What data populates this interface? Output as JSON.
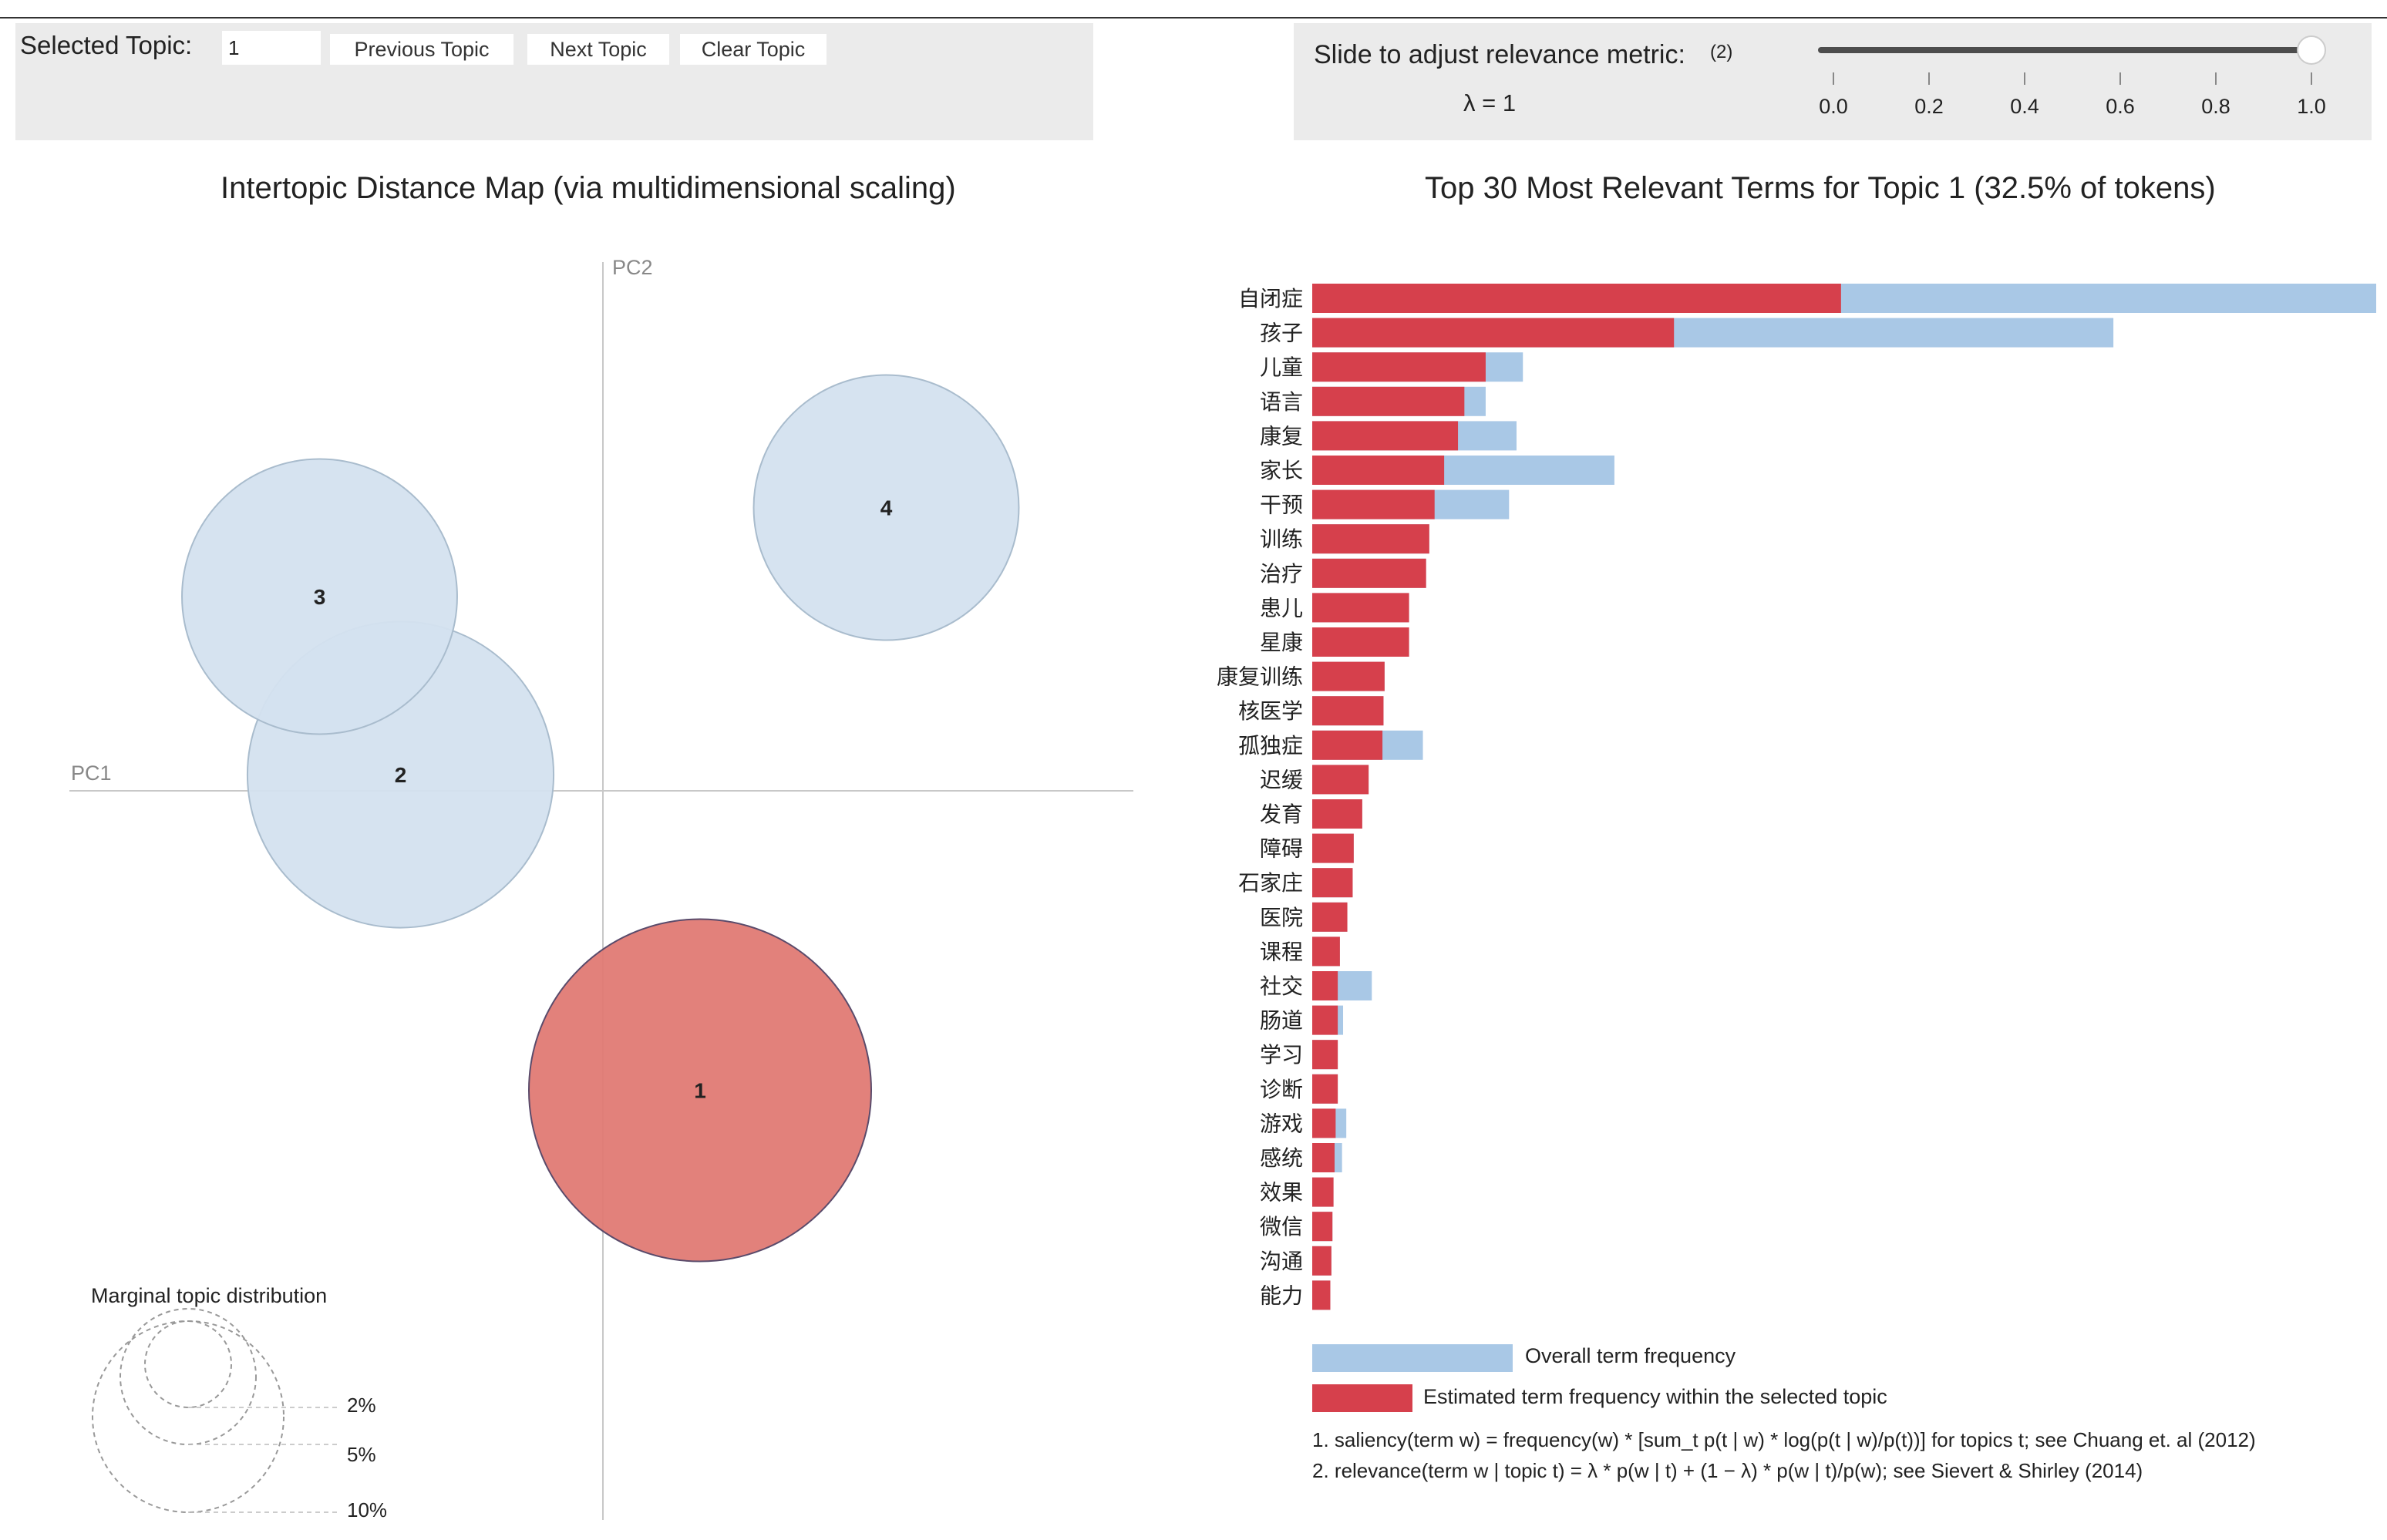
{
  "controls": {
    "selected_topic_label": "Selected Topic:",
    "selected_topic_value": "1",
    "previous_label": "Previous Topic",
    "next_label": "Next Topic",
    "clear_label": "Clear Topic"
  },
  "relevance": {
    "label": "Slide to adjust relevance metric:",
    "note": "(2)",
    "lambda_label": "λ = 1",
    "value": 1.0,
    "ticks": [
      "0.0",
      "0.2",
      "0.4",
      "0.6",
      "0.8",
      "1.0"
    ]
  },
  "map": {
    "title": "Intertopic Distance Map (via multidimensional scaling)",
    "pc1_label": "PC1",
    "pc2_label": "PC2",
    "marginal_title": "Marginal topic distribution",
    "marginal_labels": [
      "2%",
      "5%",
      "10%"
    ]
  },
  "bars": {
    "title": "Top 30 Most Relevant Terms for Topic 1 (32.5% of tokens)"
  },
  "legend": {
    "overall": "Overall term frequency",
    "estimated": "Estimated term frequency within the selected topic"
  },
  "notes": {
    "n1": "1. saliency(term w) = frequency(w) * [sum_t p(t | w) * log(p(t | w)/p(t))] for topics t; see Chuang et. al (2012)",
    "n2": "2. relevance(term w | topic t) = λ * p(w | t) + (1 − λ) * p(w | t)/p(w); see Sievert & Shirley (2014)"
  },
  "colors": {
    "selected_topic": "#e07a74",
    "selected_stroke": "#5a4b6b",
    "topic": "#d4e2ef",
    "topic_stroke": "#a9bccd",
    "overall_bar": "#a9c8e6",
    "estimated_bar": "#d6404c"
  },
  "chart_data": [
    {
      "type": "scatter",
      "title": "Intertopic Distance Map (via multidimensional scaling)",
      "xlabel": "PC1",
      "ylabel": "PC2",
      "points": [
        {
          "label": "1",
          "x": 0.12,
          "y": -0.37,
          "size": 32.5,
          "selected": true
        },
        {
          "label": "2",
          "x": -0.25,
          "y": 0.02,
          "size": 26,
          "selected": false
        },
        {
          "label": "3",
          "x": -0.35,
          "y": 0.24,
          "size": 21,
          "selected": false
        },
        {
          "label": "4",
          "x": 0.35,
          "y": 0.35,
          "size": 19.5,
          "selected": false
        }
      ]
    },
    {
      "type": "bar",
      "title": "Top 30 Most Relevant Terms for Topic 1 (32.5% of tokens)",
      "orientation": "horizontal",
      "categories": [
        "自闭症",
        "孩子",
        "儿童",
        "语言",
        "康复",
        "家长",
        "干预",
        "训练",
        "治疗",
        "患儿",
        "星康",
        "康复训练",
        "核医学",
        "孤独症",
        "迟缓",
        "发育",
        "障碍",
        "石家庄",
        "医院",
        "课程",
        "社交",
        "肠道",
        "学习",
        "诊断",
        "游戏",
        "感统",
        "效果",
        "微信",
        "沟通",
        "能力"
      ],
      "series": [
        {
          "name": "Overall term frequency",
          "values": [
            1000,
            753,
            198,
            163,
            192,
            284,
            185,
            110,
            107,
            91,
            91,
            68,
            67,
            104,
            53,
            47,
            39,
            38,
            33,
            26,
            56,
            29,
            24,
            24,
            32,
            28,
            20,
            19,
            18,
            17
          ]
        },
        {
          "name": "Estimated term frequency within the selected topic",
          "values": [
            497,
            340,
            163,
            143,
            137,
            124,
            115,
            110,
            107,
            91,
            91,
            68,
            67,
            66,
            53,
            47,
            39,
            38,
            33,
            26,
            24,
            24,
            24,
            24,
            22,
            21,
            20,
            19,
            18,
            17
          ]
        }
      ]
    }
  ]
}
